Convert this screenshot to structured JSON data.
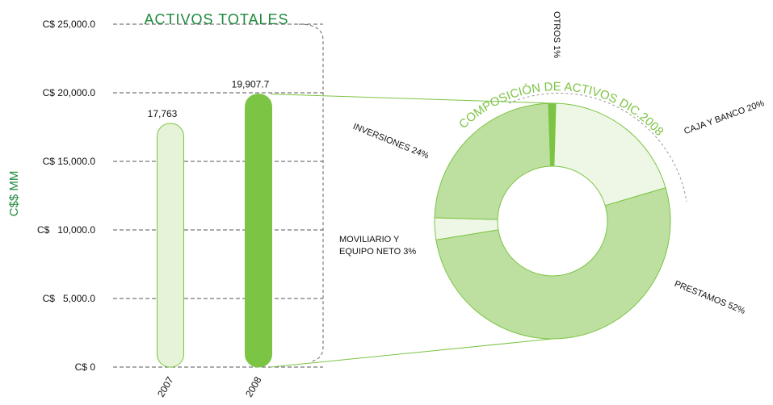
{
  "chart_data": [
    {
      "type": "bar",
      "title": "ACTIVOS TOTALES",
      "y_label": "C$$ MM",
      "categories": [
        "2007",
        "2008"
      ],
      "values": [
        17763,
        19907.7
      ],
      "value_labels": [
        "17,763",
        "19,907.7"
      ],
      "colors": [
        "#e6f3d8",
        "#7cc444"
      ],
      "edge_color": "#7cc444",
      "ylim": [
        0,
        25000
      ],
      "yticks": [
        {
          "value": 0,
          "label": "C$ 0"
        },
        {
          "value": 5000,
          "label": "C$   5,000.0"
        },
        {
          "value": 10000,
          "label": "C$   10,000.0"
        },
        {
          "value": 15000,
          "label": "C$ 15,000.0"
        },
        {
          "value": 20000,
          "label": "C$ 20,000.0"
        },
        {
          "value": 25000,
          "label": "C$ 25,000.0"
        }
      ],
      "grid": true
    },
    {
      "type": "donut",
      "title": "COMPOSICIÓN DE ACTIVOS DIC.2008",
      "categories": [
        "OTROS",
        "CAJA Y BANCO",
        "PRESTAMOS",
        "MOVILIARIO Y EQUIPO NETO",
        "INVERSIONES"
      ],
      "values": [
        1,
        20,
        52,
        3,
        24
      ],
      "value_labels": [
        "1%",
        "20%",
        "52%",
        "3%",
        "24%"
      ],
      "colors": [
        "#7cc444",
        "#eef7e6",
        "#bde0a0",
        "#eef7e6",
        "#bde0a0"
      ],
      "edge_color": "#7cc444"
    }
  ]
}
